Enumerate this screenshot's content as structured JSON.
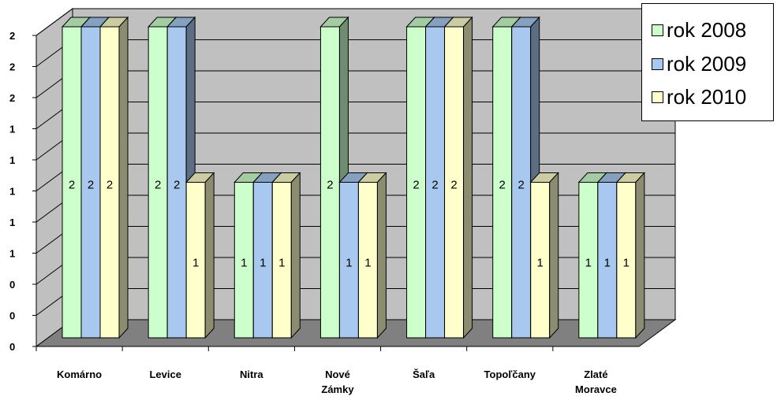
{
  "chart_data": {
    "type": "bar",
    "categories": [
      "Komárno",
      "Levice",
      "Nitra",
      "Nové Zámky",
      "Šaľa",
      "Topoľčany",
      "Zlaté Moravce"
    ],
    "category_lines": [
      [
        "Komárno"
      ],
      [
        "Levice"
      ],
      [
        "Nitra"
      ],
      [
        "Nové",
        "Zámky"
      ],
      [
        "Šaľa"
      ],
      [
        "Topoľčany"
      ],
      [
        "Zlaté",
        "Moravce"
      ]
    ],
    "series": [
      {
        "name": "rok 2008",
        "values": [
          2,
          2,
          1,
          2,
          2,
          2,
          1
        ],
        "color": "#ccffcc"
      },
      {
        "name": "rok 2009",
        "values": [
          2,
          2,
          1,
          1,
          2,
          2,
          1
        ],
        "color": "#a8c8f0"
      },
      {
        "name": "rok 2010",
        "values": [
          2,
          1,
          1,
          1,
          2,
          1,
          1
        ],
        "color": "#ffffcc"
      }
    ],
    "y_tick_labels": [
      "0",
      "0",
      "0",
      "1",
      "1",
      "1",
      "1",
      "1",
      "2",
      "2",
      "2"
    ],
    "ylim": [
      0,
      2
    ],
    "grid": true,
    "legend_position": "top-right",
    "chart_style": "3d-clustered-column",
    "colors": {
      "wall": "#c0c0c0",
      "floor": "#808080",
      "gridline": "#000000"
    }
  }
}
